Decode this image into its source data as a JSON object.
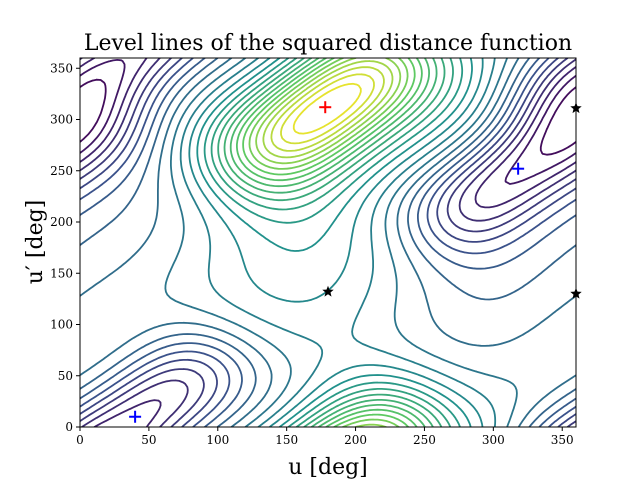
{
  "chart_data": {
    "type": "contour",
    "title": "Level lines of the squared distance function",
    "xlabel": "u [deg]",
    "ylabel": "u′ [deg]",
    "xlim": [
      0,
      360
    ],
    "ylim": [
      0,
      360
    ],
    "xticks": [
      0,
      50,
      100,
      150,
      200,
      250,
      300,
      350
    ],
    "yticks": [
      0,
      50,
      100,
      150,
      200,
      250,
      300,
      350
    ],
    "grid": false,
    "colormap": [
      "#440154",
      "#3b528b",
      "#21918c",
      "#5ec962",
      "#fde725"
    ],
    "maxima": [
      {
        "u": 178,
        "u_prime": 312,
        "marker": "+",
        "color": "#ff0000"
      }
    ],
    "minima": [
      {
        "u": 40,
        "u_prime": 10,
        "marker": "+",
        "color": "#0000ff"
      },
      {
        "u": 318,
        "u_prime": 252,
        "marker": "+",
        "color": "#0000ff"
      }
    ],
    "saddles": [
      {
        "u": 180,
        "u_prime": 132,
        "marker": "star",
        "color": "#000000"
      },
      {
        "u": 360,
        "u_prime": 130,
        "marker": "star",
        "color": "#000000"
      },
      {
        "u": 360,
        "u_prime": 311,
        "marker": "star",
        "color": "#000000"
      }
    ]
  }
}
